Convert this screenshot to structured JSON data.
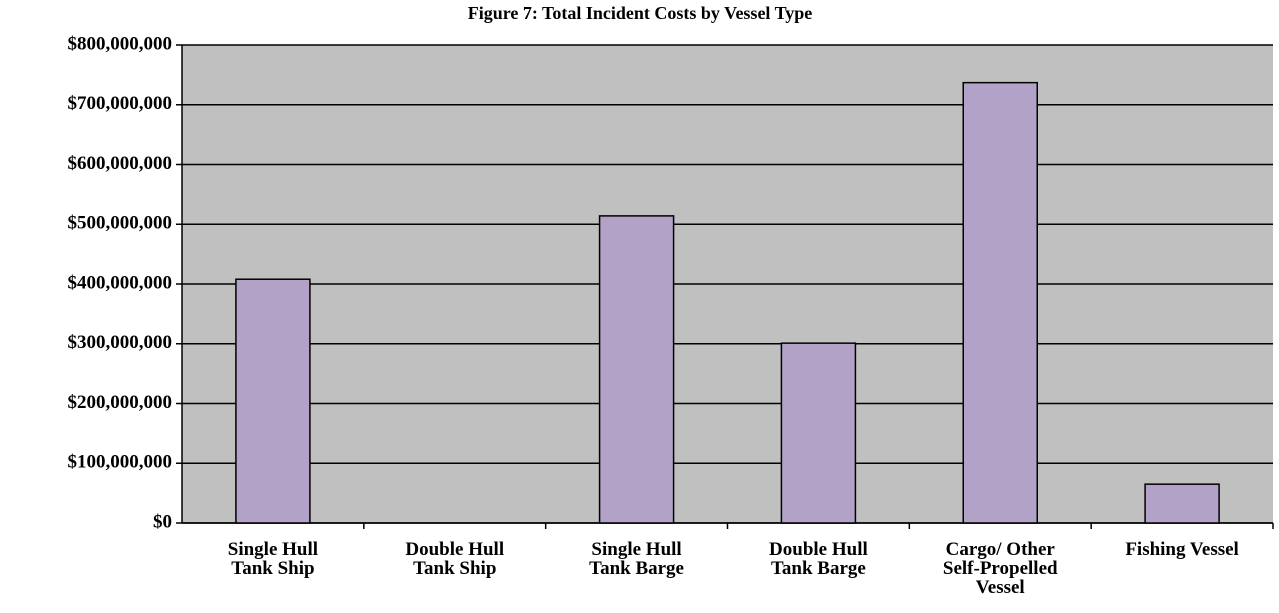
{
  "chart_data": {
    "type": "bar",
    "title": "Figure 7: Total Incident Costs by Vessel Type",
    "categories": [
      "Single Hull\nTank Ship",
      "Double Hull\nTank Ship",
      "Single Hull\nTank Barge",
      "Double Hull\nTank Barge",
      "Cargo/ Other\nSelf-Propelled\nVessel",
      "Fishing Vessel"
    ],
    "values": [
      408000000,
      0,
      514000000,
      301000000,
      737000000,
      65000000
    ],
    "color": "#b3a2c7",
    "ylim": [
      0,
      800000000
    ],
    "yticks": [
      {
        "value": 0,
        "label": "$0"
      },
      {
        "value": 100000000,
        "label": "$100,000,000"
      },
      {
        "value": 200000000,
        "label": "$200,000,000"
      },
      {
        "value": 300000000,
        "label": "$300,000,000"
      },
      {
        "value": 400000000,
        "label": "$400,000,000"
      },
      {
        "value": 500000000,
        "label": "$500,000,000"
      },
      {
        "value": 600000000,
        "label": "$600,000,000"
      },
      {
        "value": 700000000,
        "label": "$700,000,000"
      },
      {
        "value": 800000000,
        "label": "$800,000,000"
      }
    ],
    "grid": true
  }
}
